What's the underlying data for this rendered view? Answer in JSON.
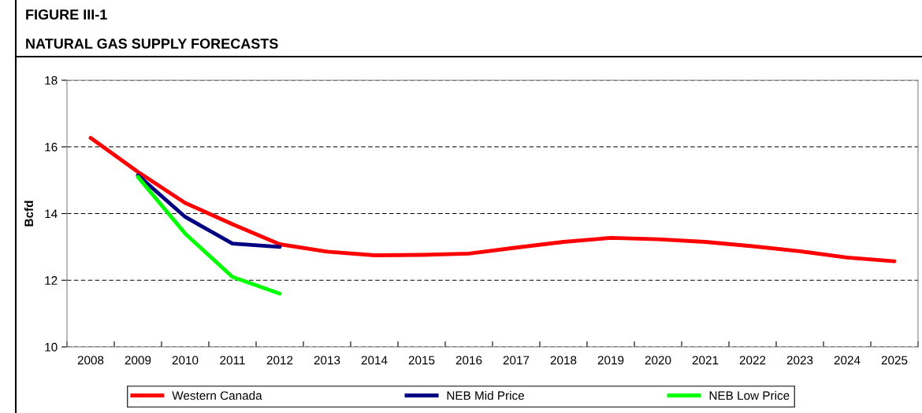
{
  "chart_data": {
    "type": "line",
    "title": "FIGURE III-1",
    "subtitle": "NATURAL GAS SUPPLY FORECASTS",
    "ylabel": "Bcfd",
    "categories": [
      "2008",
      "2009",
      "2010",
      "2011",
      "2012",
      "2013",
      "2014",
      "2015",
      "2016",
      "2017",
      "2018",
      "2019",
      "2020",
      "2021",
      "2022",
      "2023",
      "2024",
      "2025"
    ],
    "series": [
      {
        "name": "Western Canada",
        "color": "#ff0000",
        "values": [
          16.27,
          15.25,
          14.32,
          13.68,
          13.08,
          12.86,
          12.75,
          12.76,
          12.8,
          12.98,
          13.15,
          13.27,
          13.23,
          13.15,
          13.02,
          12.87,
          12.68,
          12.57
        ]
      },
      {
        "name": "NEB Mid Price",
        "color": "#000080",
        "values": [
          null,
          15.15,
          13.9,
          13.1,
          13.0,
          null,
          null,
          null,
          null,
          null,
          null,
          null,
          null,
          null,
          null,
          null,
          null,
          null
        ]
      },
      {
        "name": "NEB Low Price",
        "color": "#00ff00",
        "values": [
          null,
          15.1,
          13.4,
          12.1,
          11.6,
          null,
          null,
          null,
          null,
          null,
          null,
          null,
          null,
          null,
          null,
          null,
          null,
          null
        ]
      }
    ],
    "ylim": [
      10,
      18
    ],
    "yticks": [
      10,
      12,
      14,
      16,
      18
    ],
    "grid": "y",
    "legend": "bottom",
    "marker": "none",
    "line_style": "solid"
  }
}
